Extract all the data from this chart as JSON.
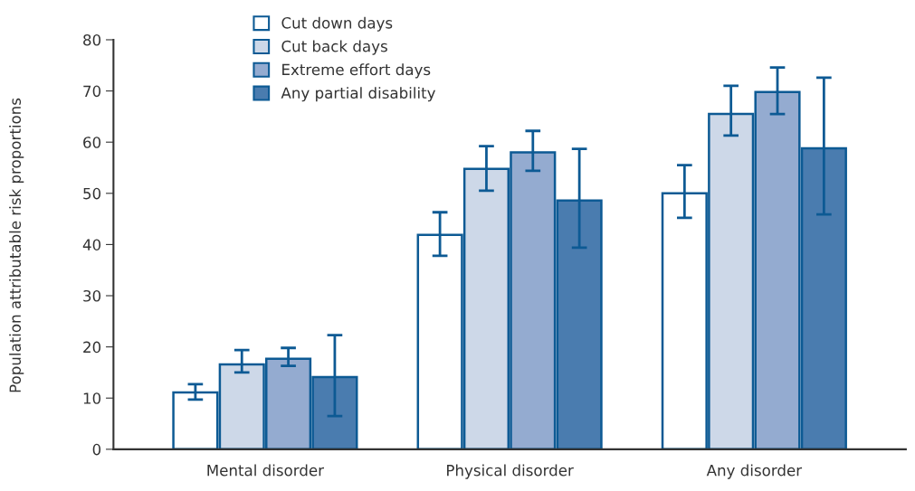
{
  "chart_data": {
    "type": "bar",
    "ylabel": "Population attributable risk proportions",
    "categories": [
      "Mental disorder",
      "Physical disorder",
      "Any disorder"
    ],
    "series": [
      {
        "name": "Cut down days",
        "color": "#ffffff",
        "values": [
          11.1,
          41.9,
          50.0
        ],
        "errors": [
          [
            9.7,
            12.7
          ],
          [
            37.8,
            46.3
          ],
          [
            45.2,
            55.5
          ]
        ]
      },
      {
        "name": "Cut back days",
        "color": "#cdd8e8",
        "values": [
          16.6,
          54.8,
          65.5
        ],
        "errors": [
          [
            15.0,
            19.4
          ],
          [
            50.5,
            59.2
          ],
          [
            61.3,
            71.0
          ]
        ]
      },
      {
        "name": "Extreme effort days",
        "color": "#94abd0",
        "values": [
          17.7,
          58.0,
          69.8
        ],
        "errors": [
          [
            16.3,
            19.8
          ],
          [
            54.4,
            62.2
          ],
          [
            65.5,
            74.6
          ]
        ]
      },
      {
        "name": "Any partial disability",
        "color": "#4a7caf",
        "values": [
          14.1,
          48.6,
          58.8
        ],
        "errors": [
          [
            6.5,
            22.3
          ],
          [
            39.4,
            58.7
          ],
          [
            45.9,
            72.6
          ]
        ]
      }
    ],
    "ylim": [
      0,
      80
    ],
    "yticks": [
      0,
      10,
      20,
      30,
      40,
      50,
      60,
      70,
      80
    ],
    "grid": false,
    "legend": "top left"
  }
}
